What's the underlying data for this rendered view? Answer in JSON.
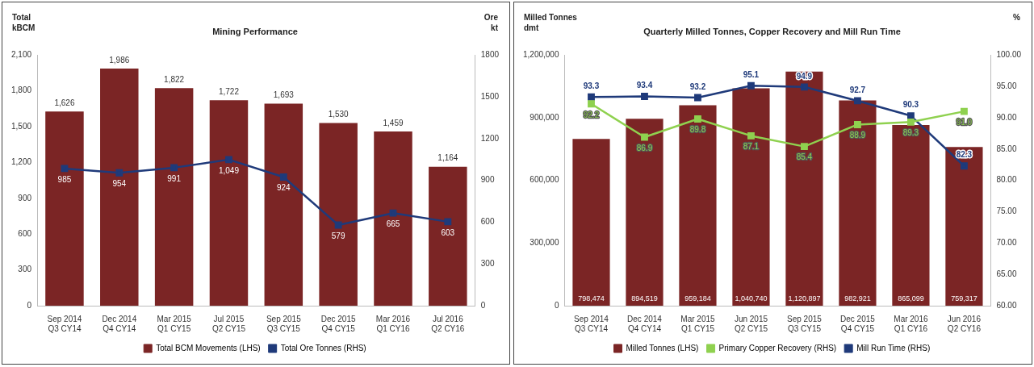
{
  "chart_data": [
    {
      "type": "bar",
      "title": "Mining Performance",
      "ylabel": "Total\nkBCM",
      "y2label": "Ore\nkt",
      "categories": [
        "Sep 2014\nQ3 CY14",
        "Dec 2014\nQ4 CY14",
        "Mar 2015\nQ1 CY15",
        "Jul 2015\nQ2 CY15",
        "Sep 2015\nQ3 CY15",
        "Dec 2015\nQ4 CY15",
        "Mar 2016\nQ1 CY16",
        "Jul 2016\nQ2 CY16"
      ],
      "series": [
        {
          "name": "Total BCM Movements (LHS)",
          "color": "#7b2525",
          "values": [
            1626,
            1986,
            1822,
            1722,
            1693,
            1530,
            1459,
            1164
          ],
          "value_labels": [
            "1,626",
            "1,986",
            "1,822",
            "1,722",
            "1,693",
            "1,530",
            "1,459",
            "1,164"
          ]
        },
        {
          "name": "Total Ore Tonnes (RHS)",
          "type": "line",
          "axis": "y2",
          "color": "#1f3a7a",
          "values": [
            985,
            954,
            991,
            1049,
            924,
            579,
            665,
            603
          ],
          "value_labels": [
            "985",
            "954",
            "991",
            "1,049",
            "924",
            "579",
            "665",
            "603"
          ]
        }
      ],
      "ylim": [
        0,
        2100
      ],
      "yticks": [
        0,
        300,
        600,
        900,
        {
          "value": 1200,
          "label": "1,200"
        },
        {
          "value": 1500,
          "label": "1,500"
        },
        {
          "value": 1800,
          "label": "1,800"
        },
        {
          "value": 2100,
          "label": "2,100"
        }
      ],
      "y2lim": [
        0,
        1800
      ],
      "y2ticks": [
        0,
        300,
        600,
        900,
        1200,
        1500,
        1800
      ],
      "grid": false,
      "legend": "bottom",
      "marker": "square",
      "line_style": "solid"
    },
    {
      "type": "bar",
      "title": "Quarterly Milled Tonnes, Copper Recovery and Mill Run Time",
      "ylabel": "Milled Tonnes\ndmt",
      "y2label": "%",
      "categories": [
        "Sep 2014\nQ3 CY14",
        "Dec 2014\nQ4 CY14",
        "Mar 2015\nQ1 CY15",
        "Jun 2015\nQ2 CY15",
        "Sep 2015\nQ3 CY15",
        "Dec 2015\nQ4 CY15",
        "Mar 2016\nQ1 CY16",
        "Jun 2016\nQ2 CY16"
      ],
      "series": [
        {
          "name": "Milled Tonnes (LHS)",
          "color": "#7b2525",
          "values": [
            798474,
            894519,
            959184,
            1040740,
            1120897,
            982921,
            865099,
            759317
          ],
          "value_labels": [
            "798,474",
            "894,519",
            "959,184",
            "1,040,740",
            "1,120,897",
            "982,921",
            "865,099",
            "759,317"
          ]
        },
        {
          "name": "Primary Copper Recovery (RHS)",
          "type": "line",
          "axis": "y2",
          "color": "#8fd14f",
          "values": [
            92.2,
            86.9,
            89.8,
            87.1,
            85.4,
            88.9,
            89.3,
            91.0
          ],
          "value_labels": [
            "92.2",
            "86.9",
            "89.8",
            "87.1",
            "85.4",
            "88.9",
            "89.3",
            "91.0"
          ]
        },
        {
          "name": "Mill Run Time (RHS)",
          "type": "line",
          "axis": "y2",
          "color": "#1f3a7a",
          "values": [
            93.3,
            93.4,
            93.2,
            95.1,
            94.9,
            92.7,
            90.3,
            82.3
          ],
          "value_labels": [
            "93.3",
            "93.4",
            "93.2",
            "95.1",
            "94.9",
            "92.7",
            "90.3",
            "82.3"
          ]
        }
      ],
      "ylim": [
        0,
        1200000
      ],
      "yticks": [
        0,
        {
          "value": 300000,
          "label": "300,000"
        },
        {
          "value": 600000,
          "label": "600,000"
        },
        {
          "value": 900000,
          "label": "900,000"
        },
        {
          "value": 1200000,
          "label": "1,200,000"
        }
      ],
      "y2lim": [
        60,
        100
      ],
      "y2ticks": [
        {
          "value": 60,
          "label": "60.00"
        },
        {
          "value": 65,
          "label": "65.00"
        },
        {
          "value": 70,
          "label": "70.00"
        },
        {
          "value": 75,
          "label": "75.00"
        },
        {
          "value": 80,
          "label": "80.00"
        },
        {
          "value": 85,
          "label": "85.00"
        },
        {
          "value": 90,
          "label": "90.00"
        },
        {
          "value": 95,
          "label": "95.00"
        },
        {
          "value": 100,
          "label": "100.00"
        }
      ],
      "grid": false,
      "legend": "bottom",
      "marker": "square",
      "line_style": "solid"
    }
  ]
}
